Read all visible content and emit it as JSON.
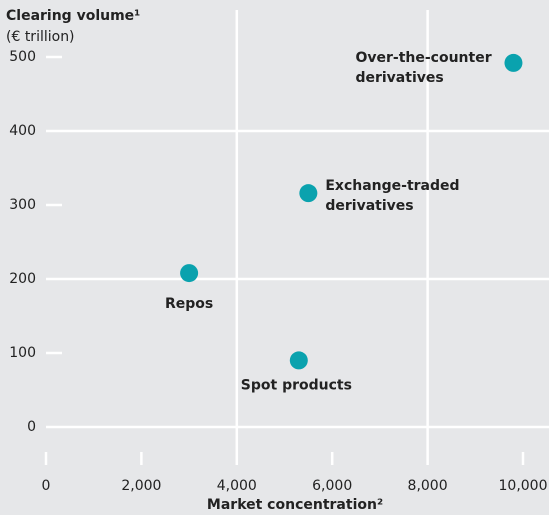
{
  "chart_data": {
    "type": "scatter",
    "title": "Clearing volume¹",
    "subtitle": "(€ trillion)",
    "xlabel": "Market concentration²",
    "x": [
      9800,
      5500,
      3000,
      5300
    ],
    "values": [
      492,
      316,
      208,
      90
    ],
    "labels": [
      [
        "Over-the-counter",
        "derivatives"
      ],
      [
        "Exchange-traded",
        "derivatives"
      ],
      [
        "Repos"
      ],
      [
        "Spot products"
      ]
    ],
    "color": "#0aa2ae",
    "xlim": [
      0,
      10000
    ],
    "ylim": [
      0,
      500
    ],
    "xticks": [
      0,
      {
        "value": 2000,
        "label": "2,000"
      },
      {
        "value": 4000,
        "label": "4,000"
      },
      {
        "value": 6000,
        "label": "6,000"
      },
      {
        "value": 8000,
        "label": "8,000"
      },
      {
        "value": 10000,
        "label": "10,000"
      }
    ],
    "yticks": [
      0,
      100,
      200,
      300,
      400,
      500
    ]
  }
}
